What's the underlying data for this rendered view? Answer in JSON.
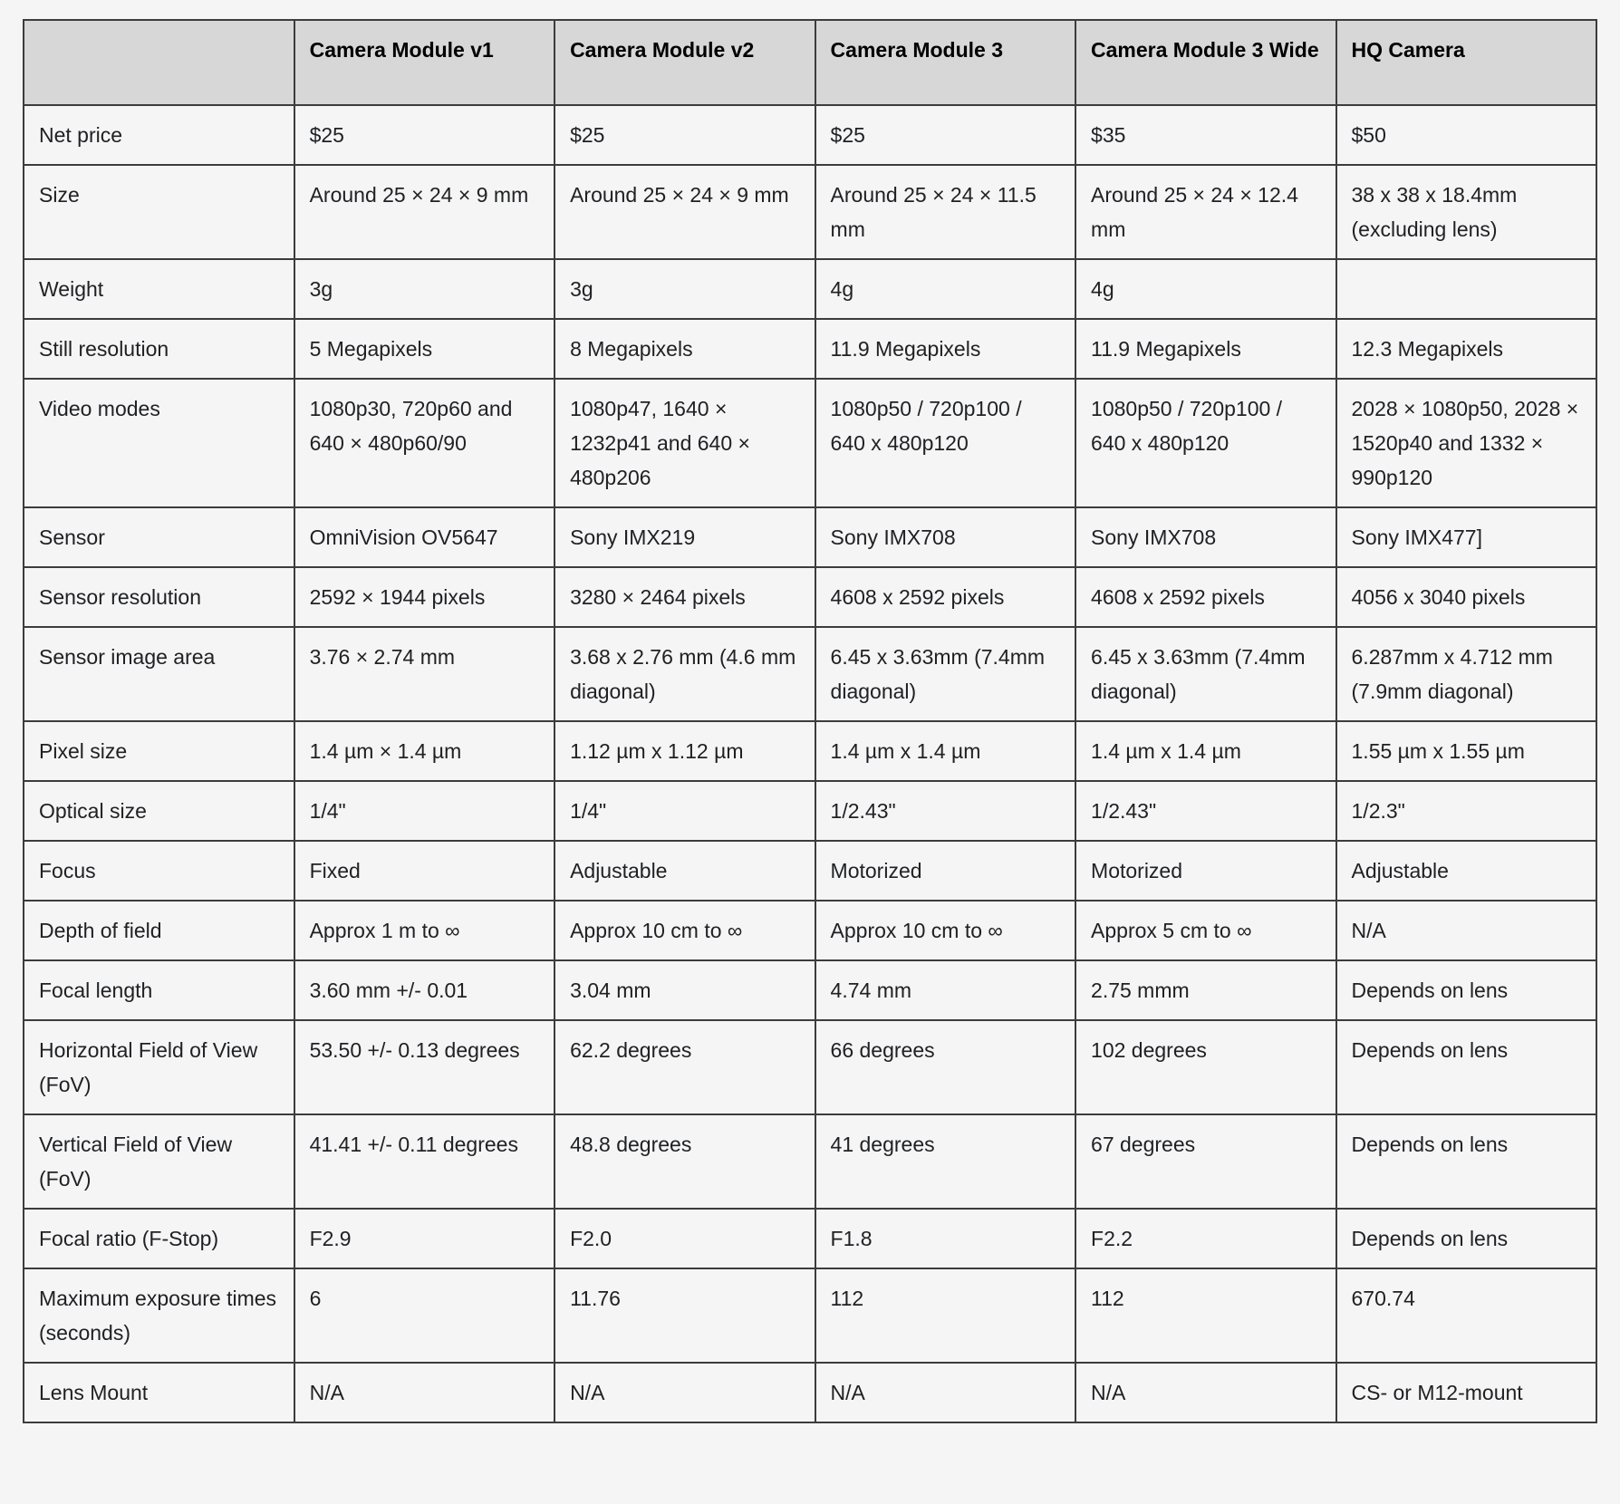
{
  "colors": {
    "page_background": "#f5f5f5",
    "header_background": "#d7d7d7",
    "cell_background": "#f5f5f5",
    "border": "#3c3c3c",
    "text": "#202124"
  },
  "table": {
    "columns": [
      "",
      "Camera Module v1",
      "Camera Module v2",
      "Camera Module 3",
      "Camera Module 3 Wide",
      "HQ Camera"
    ],
    "rows": [
      {
        "label": "Net price",
        "values": [
          "$25",
          "$25",
          "$25",
          "$35",
          "$50"
        ]
      },
      {
        "label": "Size",
        "values": [
          "Around 25 × 24 × 9 mm",
          "Around 25 × 24 × 9 mm",
          "Around 25 × 24 × 11.5 mm",
          "Around 25 × 24 × 12.4 mm",
          "38 x 38 x 18.4mm (excluding lens)"
        ]
      },
      {
        "label": "Weight",
        "values": [
          "3g",
          "3g",
          "4g",
          "4g",
          ""
        ]
      },
      {
        "label": "Still resolution",
        "values": [
          "5 Megapixels",
          "8 Megapixels",
          "11.9 Megapixels",
          "11.9 Megapixels",
          "12.3 Megapixels"
        ]
      },
      {
        "label": "Video modes",
        "values": [
          "1080p30, 720p60 and 640 × 480p60/90",
          "1080p47, 1640 × 1232p41 and 640 × 480p206",
          "1080p50 / 720p100 / 640 x 480p120",
          "1080p50 / 720p100 / 640 x 480p120",
          "2028 × 1080p50, 2028 × 1520p40 and 1332 × 990p120"
        ]
      },
      {
        "label": "Sensor",
        "values": [
          "OmniVision OV5647",
          "Sony IMX219",
          "Sony IMX708",
          "Sony IMX708",
          "Sony IMX477]"
        ]
      },
      {
        "label": "Sensor resolution",
        "values": [
          "2592 × 1944 pixels",
          "3280 × 2464 pixels",
          "4608 x 2592 pixels",
          "4608 x 2592 pixels",
          "4056 x 3040 pixels"
        ]
      },
      {
        "label": "Sensor image area",
        "values": [
          "3.76 × 2.74 mm",
          "3.68 x 2.76 mm (4.6 mm diagonal)",
          "6.45 x 3.63mm (7.4mm diagonal)",
          "6.45 x 3.63mm (7.4mm diagonal)",
          "6.287mm x 4.712 mm (7.9mm diagonal)"
        ]
      },
      {
        "label": "Pixel size",
        "values": [
          "1.4 µm × 1.4 µm",
          "1.12 µm x 1.12 µm",
          "1.4 µm x 1.4 µm",
          "1.4 µm x 1.4 µm",
          "1.55 µm x 1.55 µm"
        ]
      },
      {
        "label": "Optical size",
        "values": [
          "1/4\"",
          "1/4\"",
          "1/2.43\"",
          "1/2.43\"",
          "1/2.3\""
        ]
      },
      {
        "label": "Focus",
        "values": [
          "Fixed",
          "Adjustable",
          "Motorized",
          "Motorized",
          "Adjustable"
        ]
      },
      {
        "label": "Depth of field",
        "values": [
          "Approx 1 m to ∞",
          "Approx 10 cm to ∞",
          "Approx 10 cm to ∞",
          "Approx 5 cm to ∞",
          "N/A"
        ]
      },
      {
        "label": "Focal length",
        "values": [
          "3.60 mm +/- 0.01",
          "3.04 mm",
          "4.74 mm",
          "2.75 mmm",
          "Depends on lens"
        ]
      },
      {
        "label": "Horizontal Field of View (FoV)",
        "values": [
          "53.50 +/- 0.13 degrees",
          "62.2 degrees",
          "66 degrees",
          "102 degrees",
          "Depends on lens"
        ]
      },
      {
        "label": "Vertical Field of View (FoV)",
        "values": [
          "41.41 +/- 0.11 degrees",
          "48.8 degrees",
          "41 degrees",
          "67 degrees",
          "Depends on lens"
        ]
      },
      {
        "label": "Focal ratio (F-Stop)",
        "values": [
          "F2.9",
          "F2.0",
          "F1.8",
          "F2.2",
          "Depends on lens"
        ]
      },
      {
        "label": "Maximum exposure times (seconds)",
        "values": [
          "6",
          "11.76",
          "112",
          "112",
          "670.74"
        ]
      },
      {
        "label": "Lens Mount",
        "values": [
          "N/A",
          "N/A",
          "N/A",
          "N/A",
          "CS- or M12-mount"
        ]
      }
    ]
  }
}
